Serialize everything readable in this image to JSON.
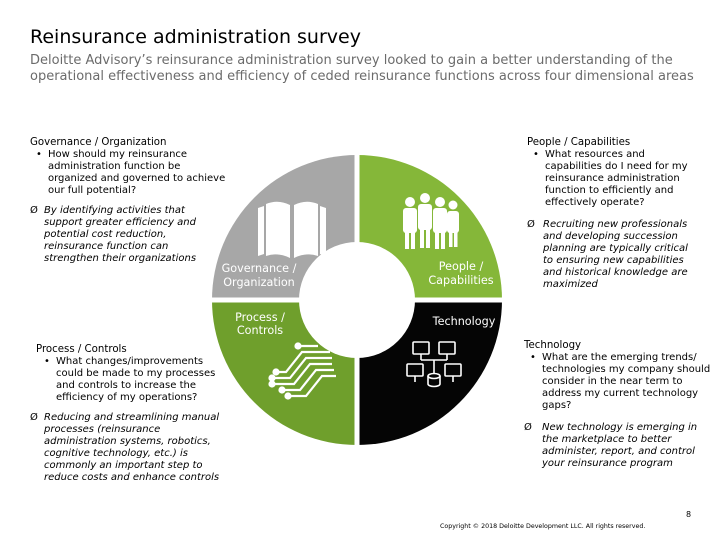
{
  "title": "Reinsurance administration survey",
  "subtitle": "Deloitte Advisory’s reinsurance administration survey looked to gain a better understanding of the operational effectiveness and efficiency of ceded reinsurance functions across four dimensional areas",
  "bullet_symbol": "•",
  "arrow_symbol": "Ø",
  "colors": {
    "governance": "#a7a7a7",
    "people": "#85b739",
    "process": "#6f9f2c",
    "technology": "#050505",
    "center": "#ffffff",
    "text_gray": "#6b6b6b"
  },
  "quadrants": {
    "governance": {
      "label_line1": "Governance /",
      "label_line2": "Organization",
      "icon": "book-icon"
    },
    "people": {
      "label_line1": "People /",
      "label_line2": "Capabilities",
      "icon": "people-group-icon"
    },
    "process": {
      "label_line1": "Process /",
      "label_line2": "Controls",
      "icon": "circuit-icon"
    },
    "technology": {
      "label_line1": "Technology",
      "icon": "network-database-icon"
    }
  },
  "blocks": {
    "governance": {
      "heading": "Governance / Organization",
      "bullet": "How should my reinsurance administration function be organized and governed to achieve our full potential?",
      "note": "By identifying activities that support greater efficiency and potential cost reduction, reinsurance function can strengthen their organizations"
    },
    "people": {
      "heading": "People / Capabilities",
      "bullet": "What resources and capabilities do I need for my reinsurance administration function to efficiently and effectively operate?",
      "note": "Recruiting new professionals and developing succession planning are typically critical to ensuring new capabilities and historical knowledge are maximized"
    },
    "process": {
      "heading": "Process / Controls",
      "bullet": "What changes/improvements could be made to my processes and controls to increase the efficiency of my operations?",
      "note": "Reducing and streamlining manual processes (reinsurance administration systems, robotics, cognitive technology, etc.) is commonly an important step to reduce costs and enhance controls"
    },
    "technology": {
      "heading": "Technology",
      "bullet": "What are the emerging trends/ technologies my company should consider in the near term to address my current technology gaps?",
      "note": "New technology is emerging in the marketplace to better administer, report, and control your reinsurance program"
    }
  },
  "footer": {
    "page_number": "8",
    "copyright": "Copyright © 2018 Deloitte Development LLC. All rights reserved."
  }
}
